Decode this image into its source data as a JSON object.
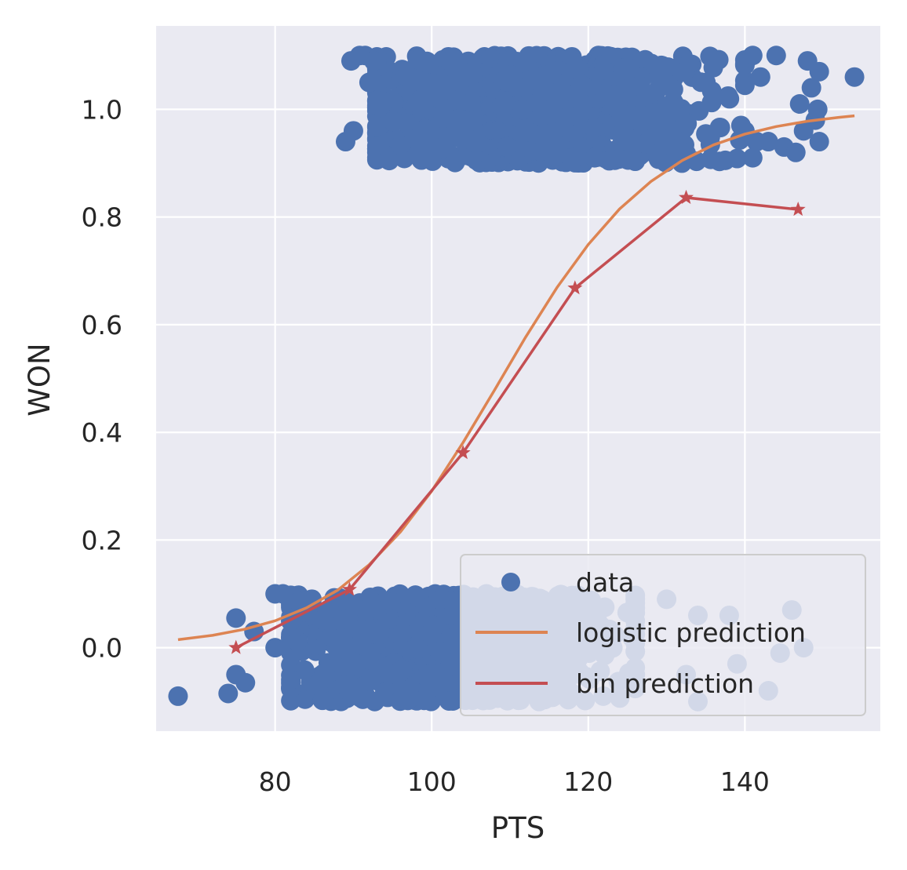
{
  "chart_data": {
    "type": "scatter",
    "xlabel": "PTS",
    "ylabel": "WON",
    "xlim": [
      64.8,
      157.3
    ],
    "ylim": [
      -0.155,
      1.155
    ],
    "xticks": [
      80,
      100,
      120,
      140
    ],
    "yticks": [
      0.0,
      0.2,
      0.4,
      0.6,
      0.8,
      1.0
    ],
    "xtick_labels": [
      "80",
      "100",
      "120",
      "140"
    ],
    "ytick_labels": [
      "0.0",
      "0.2",
      "0.4",
      "0.6",
      "0.8",
      "1.0"
    ],
    "grid": true,
    "legend_position": "lower-right",
    "series": [
      {
        "name": "data",
        "kind": "scatter",
        "color": "#4c72b0",
        "jitter": true,
        "groups": [
          {
            "y": 0,
            "count": 900,
            "x_mean": 103,
            "x_sd": 10.5,
            "x_min": 82,
            "x_max": 126
          },
          {
            "y": 1,
            "count": 1000,
            "x_mean": 114,
            "x_sd": 11.0,
            "x_min": 93,
            "x_max": 140
          }
        ],
        "points": [
          [
            67.6,
            -0.09
          ],
          [
            74.0,
            -0.085
          ],
          [
            75.0,
            0.055
          ],
          [
            75.0,
            -0.05
          ],
          [
            76.2,
            -0.065
          ],
          [
            77.3,
            0.03
          ],
          [
            80.0,
            0.1
          ],
          [
            80.0,
            0.0
          ],
          [
            81.0,
            0.1
          ],
          [
            82.0,
            0.05
          ],
          [
            82.0,
            -0.06
          ],
          [
            83.0,
            0.085
          ],
          [
            88.8,
            -0.07
          ],
          [
            89.0,
            0.94
          ],
          [
            89.7,
            1.09
          ],
          [
            90.0,
            0.96
          ],
          [
            90.8,
            1.1
          ],
          [
            91.5,
            1.1
          ],
          [
            92.0,
            1.05
          ],
          [
            92.6,
            1.09
          ],
          [
            130.0,
            0.09
          ],
          [
            132.5,
            -0.05
          ],
          [
            134.0,
            0.06
          ],
          [
            134.0,
            -0.1
          ],
          [
            138.0,
            0.06
          ],
          [
            139.0,
            -0.03
          ],
          [
            139.5,
            0.97
          ],
          [
            141.0,
            0.91
          ],
          [
            141.0,
            1.1
          ],
          [
            141.5,
            0.94
          ],
          [
            142.0,
            1.06
          ],
          [
            143.0,
            0.94
          ],
          [
            143.0,
            -0.08
          ],
          [
            144.0,
            1.1
          ],
          [
            144.5,
            -0.01
          ],
          [
            145.0,
            0.93
          ],
          [
            146.0,
            0.07
          ],
          [
            146.5,
            0.92
          ],
          [
            147.0,
            1.01
          ],
          [
            147.5,
            0.96
          ],
          [
            147.5,
            0.0
          ],
          [
            148.0,
            1.09
          ],
          [
            148.5,
            1.04
          ],
          [
            149.0,
            0.98
          ],
          [
            149.5,
            1.07
          ],
          [
            149.5,
            0.94
          ],
          [
            149.3,
            1.0
          ],
          [
            154.0,
            1.06
          ]
        ]
      },
      {
        "name": "logistic prediction",
        "kind": "line",
        "color": "#dd8452",
        "x": [
          67.6,
          72,
          76,
          80,
          84,
          88,
          92,
          96,
          100,
          104,
          108,
          112,
          116,
          120,
          124,
          128,
          132,
          136,
          140,
          144,
          148,
          152,
          154
        ],
        "y": [
          0.015,
          0.023,
          0.034,
          0.05,
          0.074,
          0.107,
          0.154,
          0.215,
          0.291,
          0.381,
          0.478,
          0.577,
          0.669,
          0.749,
          0.815,
          0.866,
          0.905,
          0.934,
          0.954,
          0.968,
          0.978,
          0.985,
          0.988
        ]
      },
      {
        "name": "bin prediction",
        "kind": "line",
        "marker": "star",
        "color": "#c44e52",
        "x": [
          75.0,
          89.5,
          104.0,
          118.3,
          132.5,
          146.8
        ],
        "y": [
          0.0,
          0.108,
          0.362,
          0.668,
          0.836,
          0.814
        ]
      }
    ]
  }
}
